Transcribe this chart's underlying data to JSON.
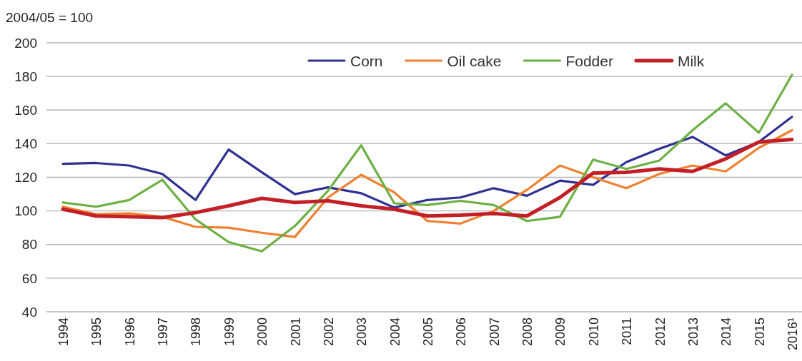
{
  "chart_data": {
    "type": "line",
    "ylabel": "2004/05 = 100",
    "categories": [
      "1994",
      "1995",
      "1996",
      "1997",
      "1998",
      "1999",
      "2000",
      "2001",
      "2002",
      "2003",
      "2004",
      "2005",
      "2006",
      "2007",
      "2008",
      "2009",
      "2010",
      "2011",
      "2012",
      "2013",
      "2014",
      "2015",
      "2016¹"
    ],
    "series": [
      {
        "name": "Corn",
        "color": "#2e3192",
        "values": [
          128,
          128.5,
          127,
          122,
          106.5,
          136.5,
          123,
          110,
          114,
          110.5,
          102,
          106.5,
          108,
          113.5,
          109,
          118,
          115.5,
          129,
          137,
          144,
          133,
          141,
          156
        ]
      },
      {
        "name": "Oil cake",
        "color": "#f0802f",
        "values": [
          102.5,
          98,
          98.5,
          96.5,
          90.5,
          90,
          87,
          84.5,
          108,
          121.5,
          111,
          94,
          92.5,
          100,
          112.5,
          127,
          120,
          113.5,
          122,
          127,
          123.5,
          137.5,
          148
        ]
      },
      {
        "name": "Fodder",
        "color": "#6cb043",
        "values": [
          105,
          102.5,
          106.5,
          118.5,
          95,
          81.5,
          76,
          91,
          112,
          139,
          104.5,
          103.5,
          106,
          103.5,
          94,
          96.5,
          130.5,
          125,
          130,
          148,
          164,
          146.5,
          181
        ]
      },
      {
        "name": "Milk",
        "color": "#c21f26",
        "values": [
          101,
          97,
          96.5,
          96,
          99,
          103,
          107.5,
          105,
          106,
          103,
          101,
          97,
          97.5,
          98.5,
          97,
          108,
          122.5,
          123,
          125,
          123.5,
          131,
          141,
          142.5
        ]
      }
    ],
    "ylim": [
      40,
      200
    ],
    "yticks": [
      40,
      60,
      80,
      100,
      120,
      140,
      160,
      180,
      200
    ],
    "grid": "y",
    "legend": "top",
    "marker": "none",
    "line_style": "solid"
  }
}
